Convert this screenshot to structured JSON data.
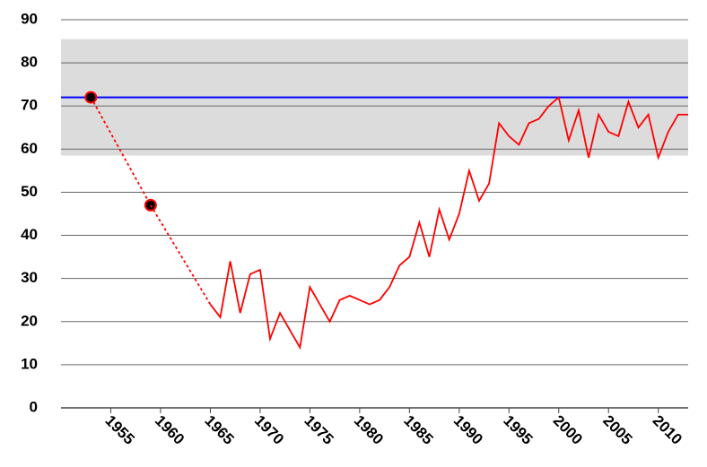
{
  "chart_data": {
    "type": "line",
    "xlim": [
      1950,
      2013
    ],
    "ylim": [
      0,
      90
    ],
    "xticks": [
      1955,
      1960,
      1965,
      1970,
      1975,
      1980,
      1985,
      1990,
      1995,
      2000,
      2005,
      2010
    ],
    "yticks": [
      0,
      10,
      20,
      30,
      40,
      50,
      60,
      70,
      80,
      90
    ],
    "grid": true,
    "bands": [
      {
        "from": 58.5,
        "to": 85.5,
        "color": "#dcdcdc"
      }
    ],
    "hlines": [
      {
        "value": 72,
        "color": "#0000ff"
      }
    ],
    "series": [
      {
        "color": "#ff0000",
        "dashed": true,
        "markers": true,
        "x": [
          1953,
          1959
        ],
        "values": [
          72,
          47
        ]
      },
      {
        "color": "#ff0000",
        "dashed": true,
        "x": [
          1959,
          1965
        ],
        "values": [
          47,
          24
        ]
      },
      {
        "color": "#ff0000",
        "x": [
          1965,
          1966,
          1967,
          1968,
          1969,
          1970,
          1971,
          1972,
          1973,
          1974,
          1975,
          1976,
          1977,
          1978,
          1979,
          1980,
          1981,
          1982,
          1983,
          1984,
          1985,
          1986,
          1987,
          1988,
          1989,
          1990,
          1991,
          1992,
          1993,
          1994,
          1995,
          1996,
          1997,
          1998,
          1999,
          2000,
          2001,
          2002,
          2003,
          2004,
          2005,
          2006,
          2007,
          2008,
          2009,
          2010,
          2011,
          2012,
          2013
        ],
        "values": [
          24,
          21,
          34,
          22,
          31,
          32,
          16,
          22,
          18,
          14,
          28,
          24,
          20,
          25,
          26,
          25,
          24,
          25,
          28,
          33,
          35,
          43,
          35,
          46,
          39,
          45,
          55,
          48,
          52,
          66,
          63,
          61,
          66,
          67,
          70,
          72,
          62,
          69,
          58,
          68,
          64,
          63,
          71,
          65,
          68,
          58,
          64,
          68,
          68
        ]
      }
    ]
  }
}
